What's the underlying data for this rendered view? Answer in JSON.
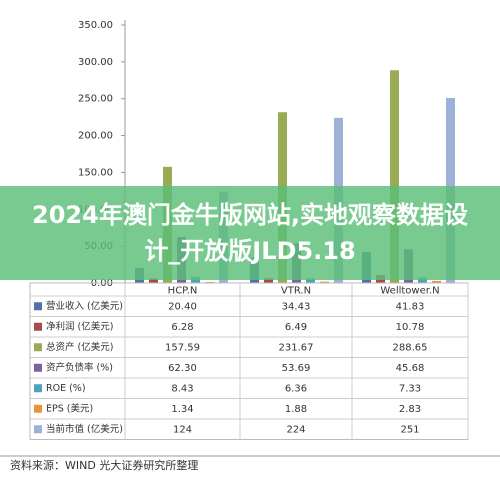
{
  "chart_data": {
    "type": "bar",
    "title": "2024年澳门金牛版网站,实地观察数据设计_开放版JLD5.18",
    "categories": [
      "HCP.N",
      "VTR.N",
      "Welltower.N"
    ],
    "series": [
      {
        "name": "营业收入 (亿美元)",
        "color": "#5470a8",
        "values": [
          20.4,
          34.43,
          41.83
        ],
        "value_labels": [
          "20.40",
          "34.43",
          "41.83"
        ]
      },
      {
        "name": "净利润 (亿美元)",
        "color": "#a84a45",
        "values": [
          6.28,
          6.49,
          10.78
        ],
        "value_labels": [
          "6.28",
          "6.49",
          "10.78"
        ]
      },
      {
        "name": "总资产 (亿美元)",
        "color": "#9aab55",
        "values": [
          157.59,
          231.67,
          288.65
        ],
        "value_labels": [
          "157.59",
          "231.67",
          "288.65"
        ]
      },
      {
        "name": "资产负债率 (%)",
        "color": "#7d62a0",
        "values": [
          62.3,
          53.69,
          45.68
        ],
        "value_labels": [
          "62.30",
          "53.69",
          "45.68"
        ]
      },
      {
        "name": "ROE (%)",
        "color": "#4ba4bb",
        "values": [
          8.43,
          6.36,
          7.33
        ],
        "value_labels": [
          "8.43",
          "6.36",
          "7.33"
        ]
      },
      {
        "name": "EPS (美元)",
        "color": "#e8953a",
        "values": [
          1.34,
          1.88,
          2.83
        ],
        "value_labels": [
          "1.34",
          "1.88",
          "2.83"
        ]
      },
      {
        "name": "当前市值 (亿美元)",
        "color": "#9cb0d8",
        "values": [
          124,
          224,
          251
        ],
        "value_labels": [
          "124",
          "224",
          "251"
        ]
      }
    ],
    "ylim": [
      0,
      350
    ],
    "yticks": [
      {
        "value": 0,
        "label": "0.00"
      },
      {
        "value": 50,
        "label": "50.00"
      },
      {
        "value": 100,
        "label": "100.00"
      },
      {
        "value": 150,
        "label": "150.00"
      },
      {
        "value": 200,
        "label": "200.00"
      },
      {
        "value": 250,
        "label": "250.00"
      },
      {
        "value": 300,
        "label": "300.00"
      },
      {
        "value": 350,
        "label": "350.00"
      }
    ],
    "grid": false,
    "source": "资料来源：WIND 光大证券研究所整理"
  }
}
